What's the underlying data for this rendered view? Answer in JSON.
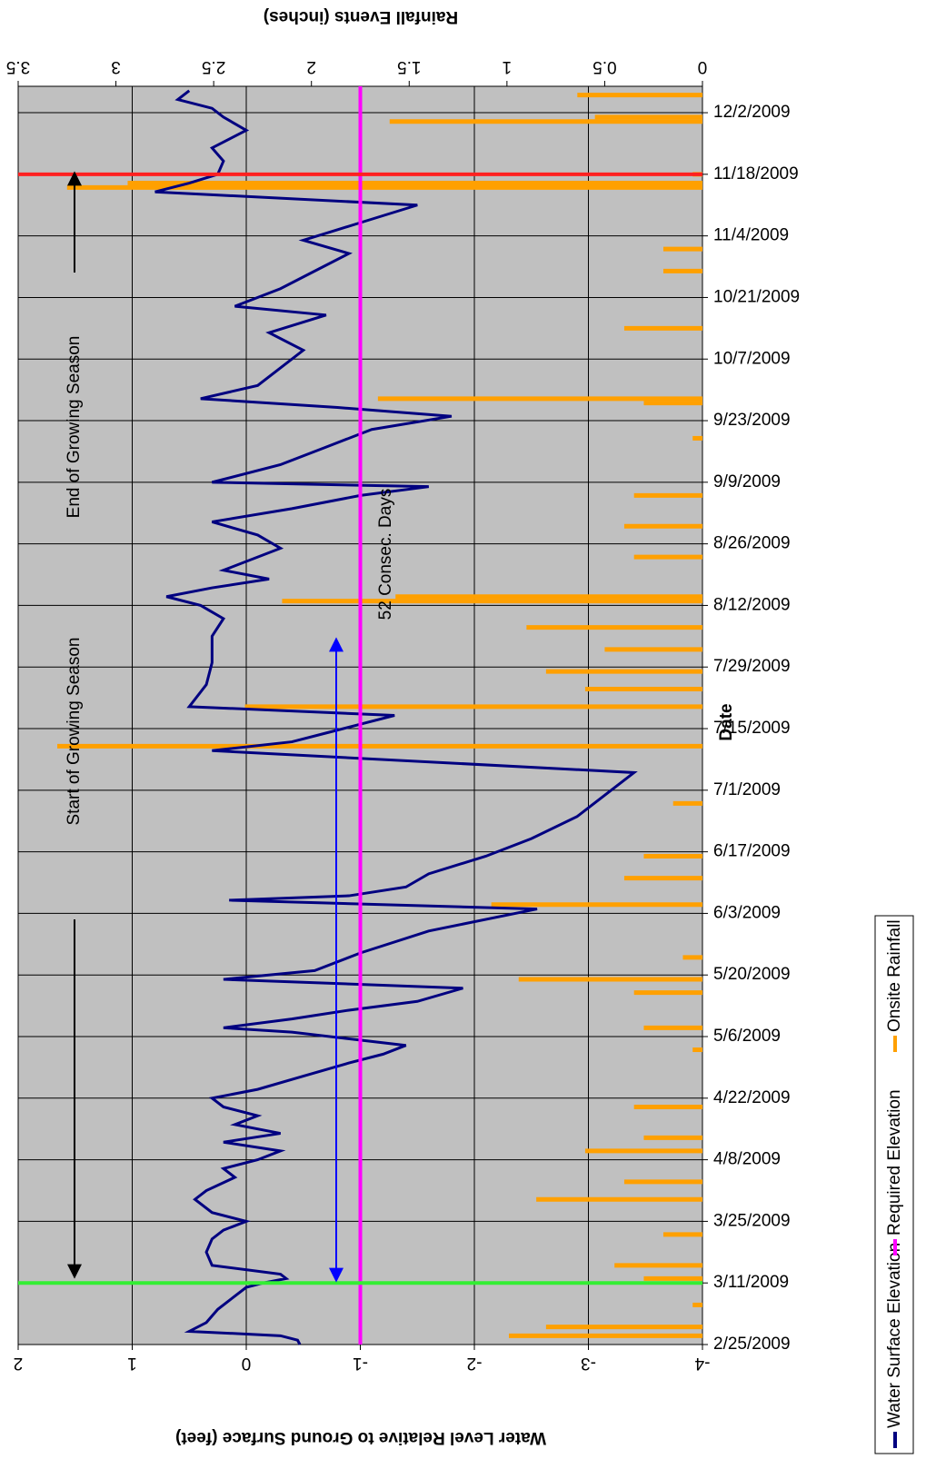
{
  "chart_data": {
    "type": "line",
    "x_title": "Date",
    "y_title": "Water Level Relative to Ground Surface (feet)",
    "y2_title": "Rainfall Events (inches)",
    "xlim": [
      "2/25/2009",
      "12/8/2009"
    ],
    "xticks": [
      "2/25/2009",
      "3/11/2009",
      "3/25/2009",
      "4/8/2009",
      "4/22/2009",
      "5/6/2009",
      "5/20/2009",
      "6/3/2009",
      "6/17/2009",
      "7/1/2009",
      "7/15/2009",
      "7/29/2009",
      "8/12/2009",
      "8/26/2009",
      "9/9/2009",
      "9/23/2009",
      "10/7/2009",
      "10/21/2009",
      "11/4/2009",
      "11/18/2009",
      "12/2/2009"
    ],
    "ylim": [
      -4,
      2
    ],
    "yticks": [
      2,
      1,
      0,
      -1,
      -2,
      -3,
      -4
    ],
    "y2lim": [
      0,
      3.5
    ],
    "y2ticks": [
      3.5,
      3,
      2.5,
      2,
      1.5,
      1,
      0.5,
      0
    ],
    "grid": true,
    "background": "#c0c0c0",
    "series": [
      {
        "name": "Water Surface Elevation",
        "color": "#000080",
        "x": [
          "2/25/2009",
          "2/26/2009",
          "2/27/2009",
          "2/28/2009",
          "3/2/2009",
          "3/5/2009",
          "3/8/2009",
          "3/10/2009",
          "3/11/2009",
          "3/12/2009",
          "3/13/2009",
          "3/15/2009",
          "3/18/2009",
          "3/21/2009",
          "3/23/2009",
          "3/25/2009",
          "3/27/2009",
          "3/30/2009",
          "4/1/2009",
          "4/4/2009",
          "4/6/2009",
          "4/8/2009",
          "4/10/2009",
          "4/12/2009",
          "4/14/2009",
          "4/16/2009",
          "4/18/2009",
          "4/20/2009",
          "4/22/2009",
          "4/24/2009",
          "4/27/2009",
          "4/30/2009",
          "5/2/2009",
          "5/4/2009",
          "5/7/2009",
          "5/8/2009",
          "5/10/2009",
          "5/12/2009",
          "5/14/2009",
          "5/17/2009",
          "5/19/2009",
          "5/21/2009",
          "5/25/2009",
          "5/30/2009",
          "6/4/2009",
          "6/6/2009",
          "6/7/2009",
          "6/9/2009",
          "6/12/2009",
          "6/16/2009",
          "6/20/2009",
          "6/25/2009",
          "7/1/2009",
          "7/5/2009",
          "7/10/2009",
          "7/12/2009",
          "7/14/2009",
          "7/16/2009",
          "7/18/2009",
          "7/20/2009",
          "7/25/2009",
          "7/30/2009",
          "8/5/2009",
          "8/9/2009",
          "8/12/2009",
          "8/14/2009",
          "8/16/2009",
          "8/18/2009",
          "8/20/2009",
          "8/25/2009",
          "8/28/2009",
          "8/31/2009",
          "9/3/2009",
          "9/6/2009",
          "9/8/2009",
          "9/9/2009",
          "9/13/2009",
          "9/17/2009",
          "9/21/2009",
          "9/24/2009",
          "9/26/2009",
          "9/28/2009",
          "10/1/2009",
          "10/5/2009",
          "10/9/2009",
          "10/13/2009",
          "10/17/2009",
          "10/19/2009",
          "10/23/2009",
          "10/27/2009",
          "10/31/2009",
          "11/3/2009",
          "11/7/2009",
          "11/11/2009",
          "11/14/2009",
          "11/16/2009",
          "11/18/2009",
          "11/21/2009",
          "11/24/2009",
          "11/28/2009",
          "12/1/2009",
          "12/3/2009",
          "12/5/2009",
          "12/7/2009"
        ],
        "values": [
          -0.47,
          -0.45,
          -0.3,
          0.5,
          0.35,
          0.25,
          0.1,
          0.0,
          -0.15,
          -0.35,
          -0.3,
          0.3,
          0.35,
          0.3,
          0.2,
          0.0,
          0.3,
          0.45,
          0.35,
          0.1,
          0.2,
          -0.1,
          -0.3,
          0.2,
          -0.3,
          0.1,
          -0.1,
          0.2,
          0.3,
          -0.1,
          -0.5,
          -0.9,
          -1.2,
          -1.4,
          -0.4,
          0.2,
          -0.4,
          -0.9,
          -1.5,
          -1.9,
          0.2,
          -0.6,
          -1.0,
          -1.6,
          -2.55,
          0.15,
          -0.9,
          -1.4,
          -1.6,
          -2.1,
          -2.5,
          -2.9,
          -3.2,
          -3.4,
          0.3,
          -0.4,
          -0.7,
          -1.0,
          -1.3,
          0.5,
          0.35,
          0.3,
          0.3,
          0.2,
          0.4,
          0.7,
          0.3,
          -0.2,
          0.2,
          -0.3,
          -0.1,
          0.3,
          -0.4,
          -1.0,
          -1.6,
          0.3,
          -0.3,
          -0.7,
          -1.1,
          -1.8,
          -0.8,
          0.4,
          -0.1,
          -0.3,
          -0.5,
          -0.2,
          -0.7,
          0.1,
          -0.3,
          -0.6,
          -0.9,
          -0.5,
          -1.0,
          -1.5,
          0.8,
          0.5,
          0.25,
          0.2,
          0.3,
          0.0,
          0.2,
          0.3,
          0.6,
          0.5
        ]
      },
      {
        "name": "Required Elevation",
        "color": "#ff00ff",
        "value": -1
      },
      {
        "name": "Onsite Rainfall",
        "color": "#ffa000",
        "axis": "y2",
        "x": [
          "2/27/2009",
          "3/1/2009",
          "3/6/2009",
          "3/12/2009",
          "3/15/2009",
          "3/22/2009",
          "3/30/2009",
          "4/3/2009",
          "4/10/2009",
          "4/13/2009",
          "4/20/2009",
          "5/3/2009",
          "5/8/2009",
          "5/16/2009",
          "5/19/2009",
          "5/24/2009",
          "6/5/2009",
          "6/11/2009",
          "6/16/2009",
          "6/28/2009",
          "7/11/2009",
          "7/20/2009",
          "7/24/2009",
          "7/28/2009",
          "8/2/2009",
          "8/7/2009",
          "8/13/2009",
          "8/14/2009",
          "8/23/2009",
          "8/30/2009",
          "9/6/2009",
          "9/19/2009",
          "9/27/2009",
          "9/28/2009",
          "10/14/2009",
          "10/27/2009",
          "11/1/2009",
          "11/15/2009",
          "11/16/2009",
          "11/18/2009",
          "11/30/2009",
          "12/1/2009",
          "12/6/2009"
        ],
        "values": [
          0.99,
          0.8,
          0.05,
          0.3,
          0.45,
          0.2,
          0.85,
          0.4,
          0.6,
          0.3,
          0.35,
          0.05,
          0.3,
          0.35,
          0.94,
          0.1,
          1.08,
          0.4,
          0.3,
          0.15,
          3.3,
          2.34,
          0.6,
          0.8,
          0.5,
          0.9,
          2.15,
          1.57,
          0.35,
          0.4,
          0.35,
          0.05,
          0.3,
          1.66,
          0.4,
          0.2,
          0.2,
          3.25,
          2.94,
          0.05,
          1.6,
          0.55,
          0.64
        ]
      }
    ],
    "vlines": [
      {
        "x": "3/11/2009",
        "color": "#33ee33"
      },
      {
        "x": "11/18/2009",
        "color": "#ff2020"
      }
    ],
    "annotations": [
      "Start of Growing Season",
      "End of Growing Season",
      "52 Consec. Days"
    ]
  }
}
